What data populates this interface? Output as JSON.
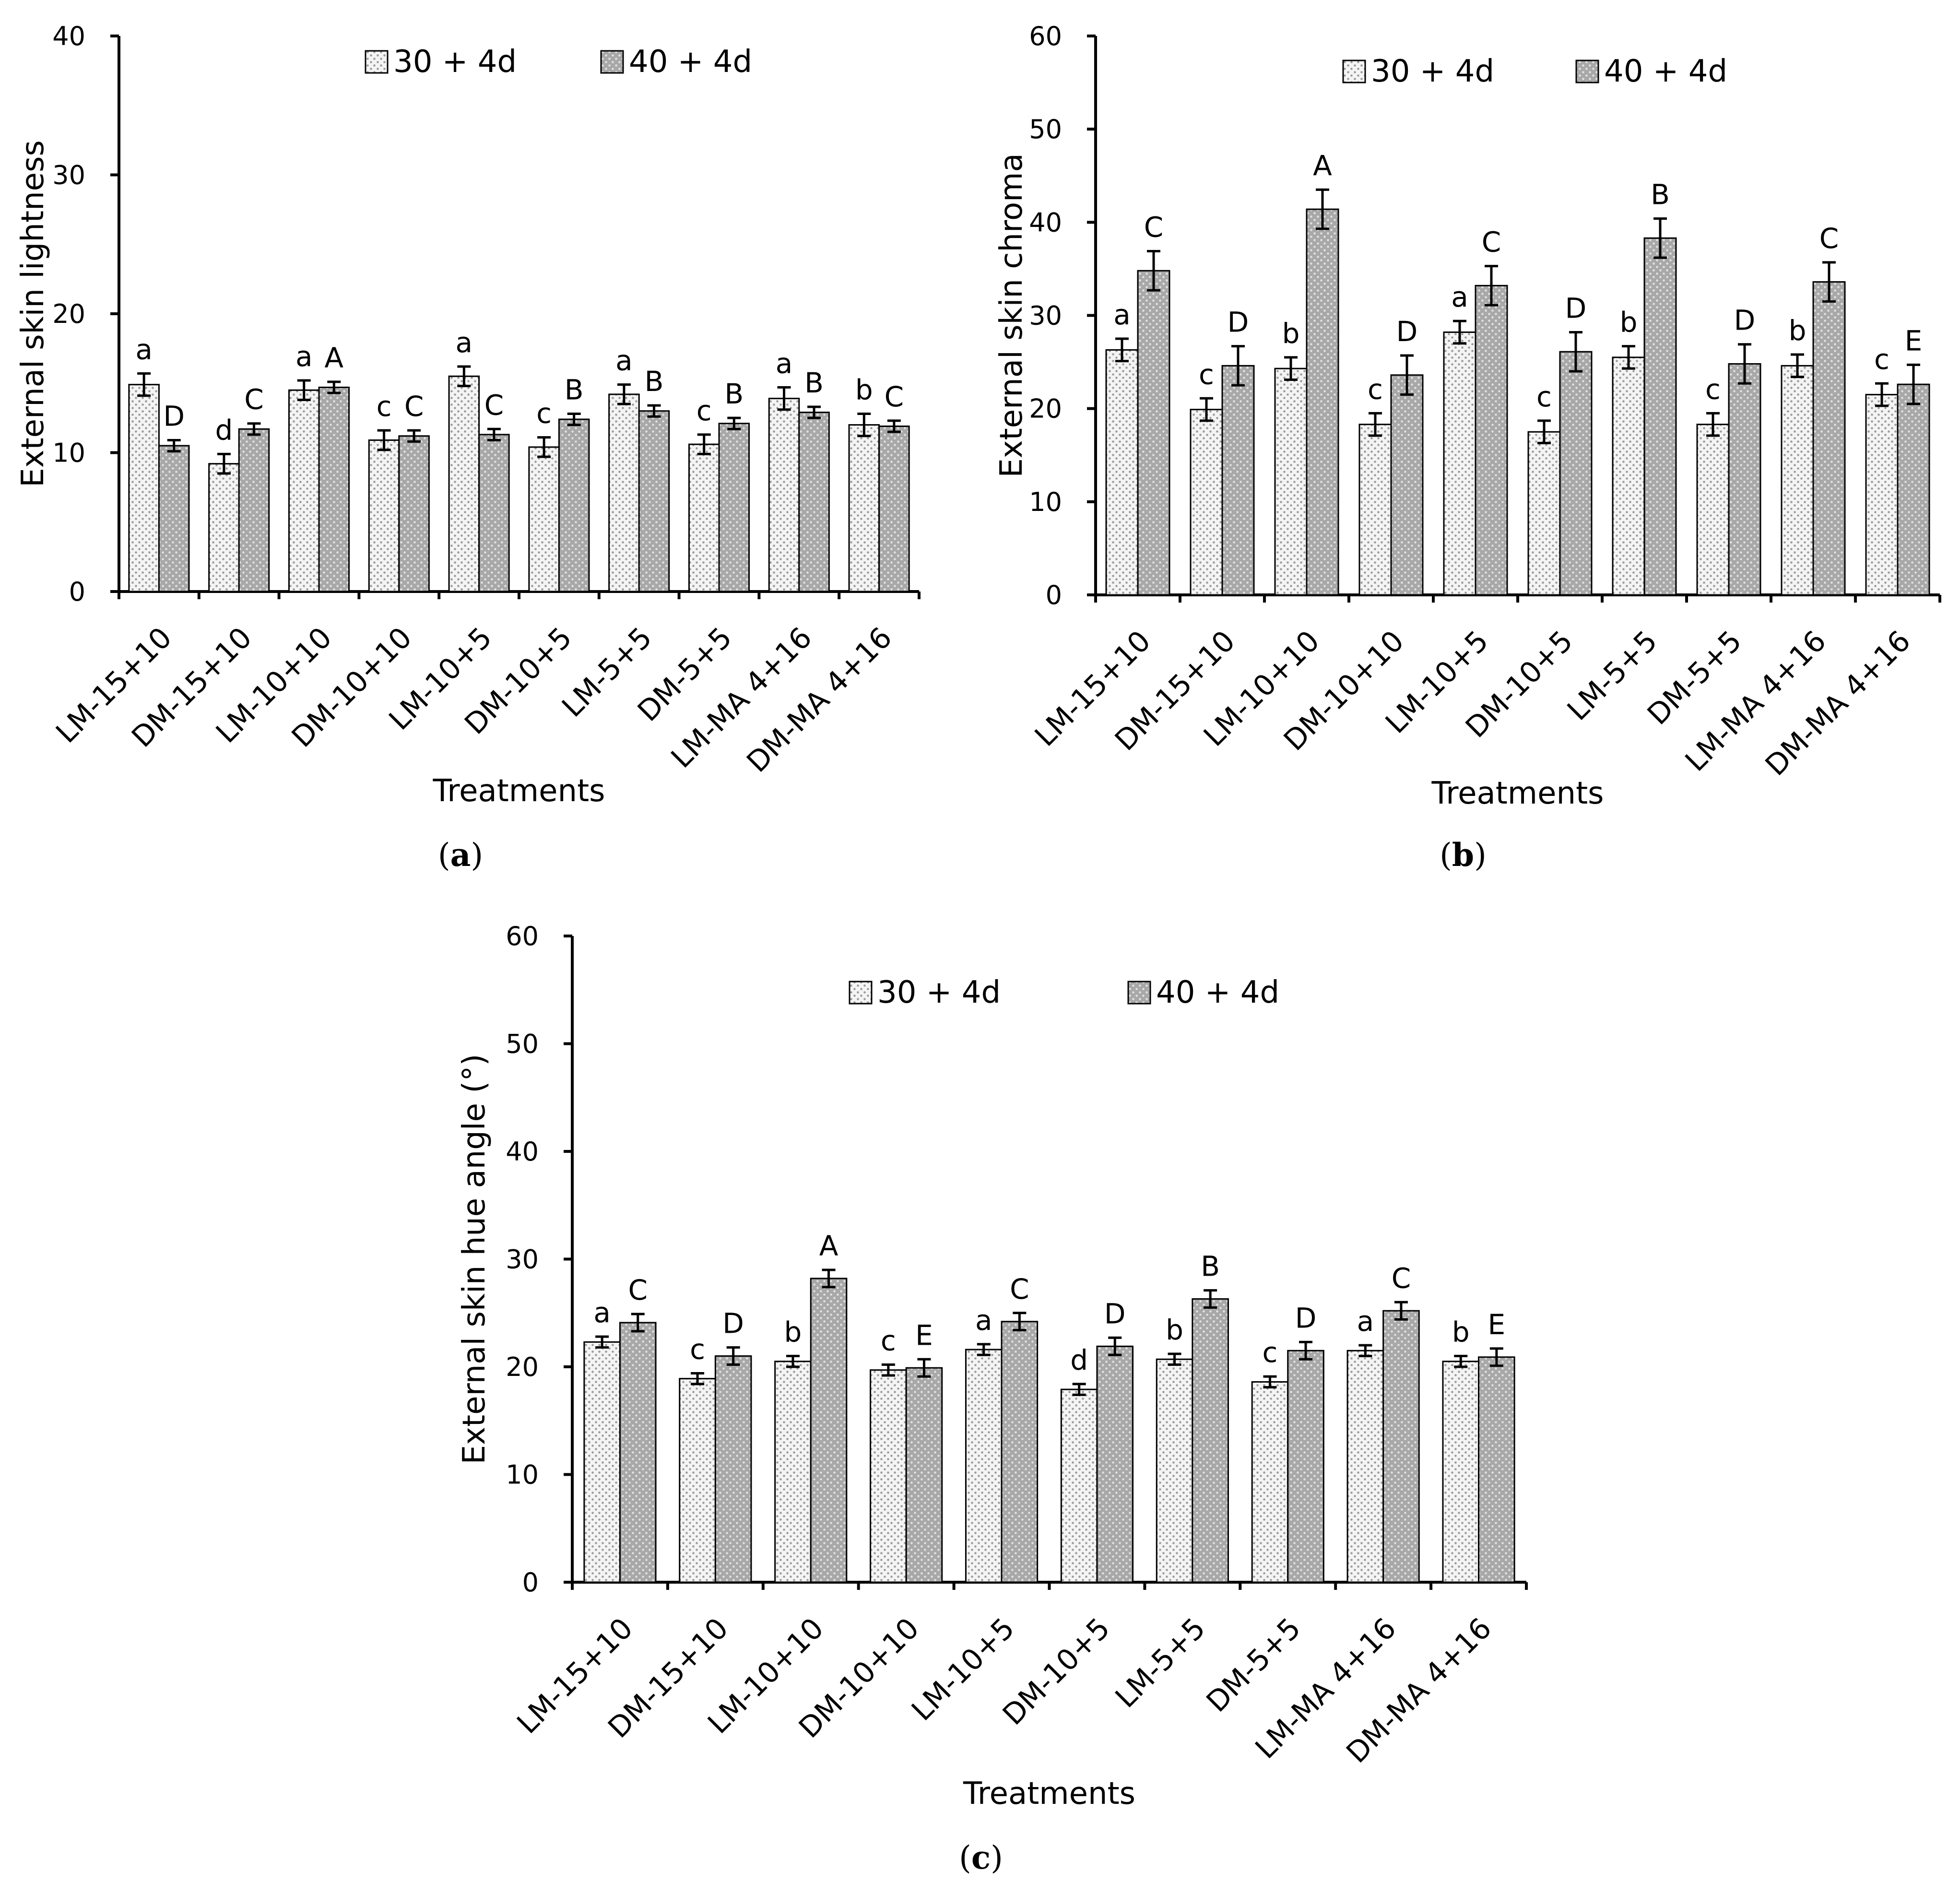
{
  "colors": {
    "series1_fill": "#f4f4f4",
    "series1_dot": "#9a9a9a",
    "series2_fill": "#a8a8a8",
    "series2_dot": "#e2e2e2",
    "axis": "#000000"
  },
  "chart_data": [
    {
      "panel": "a",
      "type": "bar",
      "ylabel": "External skin lightness",
      "xlabel": "Treatments",
      "ylim": [
        0,
        40
      ],
      "yticks": [
        0,
        10,
        20,
        30,
        40
      ],
      "categories": [
        "LM-15+10",
        "DM-15+10",
        "LM-10+10",
        "DM-10+10",
        "LM-10+5",
        "DM-10+5",
        "LM-5+5",
        "DM-5+5",
        "LM-MA 4+16",
        "DM-MA 4+16"
      ],
      "series": [
        {
          "name": "30 + 4d",
          "values": [
            14.9,
            9.2,
            14.5,
            10.9,
            15.5,
            10.4,
            14.2,
            10.6,
            13.9,
            12.0
          ],
          "errors": [
            0.8,
            0.7,
            0.7,
            0.7,
            0.7,
            0.7,
            0.7,
            0.7,
            0.8,
            0.8
          ],
          "letters": [
            "a",
            "d",
            "a",
            "c",
            "a",
            "c",
            "a",
            "c",
            "a",
            "b"
          ]
        },
        {
          "name": "40 + 4d",
          "values": [
            10.5,
            11.7,
            14.7,
            11.2,
            11.3,
            12.4,
            13.0,
            12.1,
            12.9,
            11.9
          ],
          "errors": [
            0.4,
            0.4,
            0.4,
            0.4,
            0.4,
            0.4,
            0.4,
            0.4,
            0.4,
            0.4
          ],
          "letters": [
            "D",
            "C",
            "A",
            "C",
            "C",
            "B",
            "B",
            "B",
            "B",
            "C"
          ]
        }
      ],
      "legend_position": "top-center"
    },
    {
      "panel": "b",
      "type": "bar",
      "ylabel": "External skin chroma",
      "xlabel": "Treatments",
      "ylim": [
        0,
        60
      ],
      "yticks": [
        0,
        10,
        20,
        30,
        40,
        50,
        60
      ],
      "categories": [
        "LM-15+10",
        "DM-15+10",
        "LM-10+10",
        "DM-10+10",
        "LM-10+5",
        "DM-10+5",
        "LM-5+5",
        "DM-5+5",
        "LM-MA 4+16",
        "DM-MA 4+16"
      ],
      "series": [
        {
          "name": "30 + 4d",
          "values": [
            26.3,
            19.9,
            24.3,
            18.3,
            28.2,
            17.5,
            25.5,
            18.3,
            24.6,
            21.5
          ],
          "errors": [
            1.2,
            1.2,
            1.2,
            1.2,
            1.2,
            1.2,
            1.2,
            1.2,
            1.2,
            1.2
          ],
          "letters": [
            "a",
            "c",
            "b",
            "c",
            "a",
            "c",
            "b",
            "c",
            "b",
            "c"
          ]
        },
        {
          "name": "40 + 4d",
          "values": [
            34.8,
            24.6,
            41.4,
            23.6,
            33.2,
            26.1,
            38.3,
            24.8,
            33.6,
            22.6
          ],
          "errors": [
            2.1,
            2.1,
            2.1,
            2.1,
            2.1,
            2.1,
            2.1,
            2.1,
            2.1,
            2.1
          ],
          "letters": [
            "C",
            "D",
            "A",
            "D",
            "C",
            "D",
            "B",
            "D",
            "C",
            "E"
          ]
        }
      ],
      "legend_position": "top-center"
    },
    {
      "panel": "c",
      "type": "bar",
      "ylabel": "External skin hue angle (°)",
      "xlabel": "Treatments",
      "ylim": [
        0,
        60
      ],
      "yticks": [
        0,
        10,
        20,
        30,
        40,
        50,
        60
      ],
      "categories": [
        "LM-15+10",
        "DM-15+10",
        "LM-10+10",
        "DM-10+10",
        "LM-10+5",
        "DM-10+5",
        "LM-5+5",
        "DM-5+5",
        "LM-MA 4+16",
        "DM-MA 4+16"
      ],
      "series": [
        {
          "name": "30 + 4d",
          "values": [
            22.3,
            18.9,
            20.5,
            19.7,
            21.6,
            17.9,
            20.7,
            18.6,
            21.5,
            20.5
          ],
          "errors": [
            0.5,
            0.5,
            0.5,
            0.5,
            0.5,
            0.5,
            0.5,
            0.5,
            0.5,
            0.5
          ],
          "letters": [
            "a",
            "c",
            "b",
            "c",
            "a",
            "d",
            "b",
            "c",
            "a",
            "b"
          ]
        },
        {
          "name": "40 + 4d",
          "values": [
            24.1,
            21.0,
            28.2,
            19.9,
            24.2,
            21.9,
            26.3,
            21.5,
            25.2,
            20.9
          ],
          "errors": [
            0.8,
            0.8,
            0.8,
            0.8,
            0.8,
            0.8,
            0.8,
            0.8,
            0.8,
            0.8
          ],
          "letters": [
            "C",
            "D",
            "A",
            "E",
            "C",
            "D",
            "B",
            "D",
            "C",
            "E"
          ]
        }
      ],
      "legend_position": "top-center"
    }
  ]
}
